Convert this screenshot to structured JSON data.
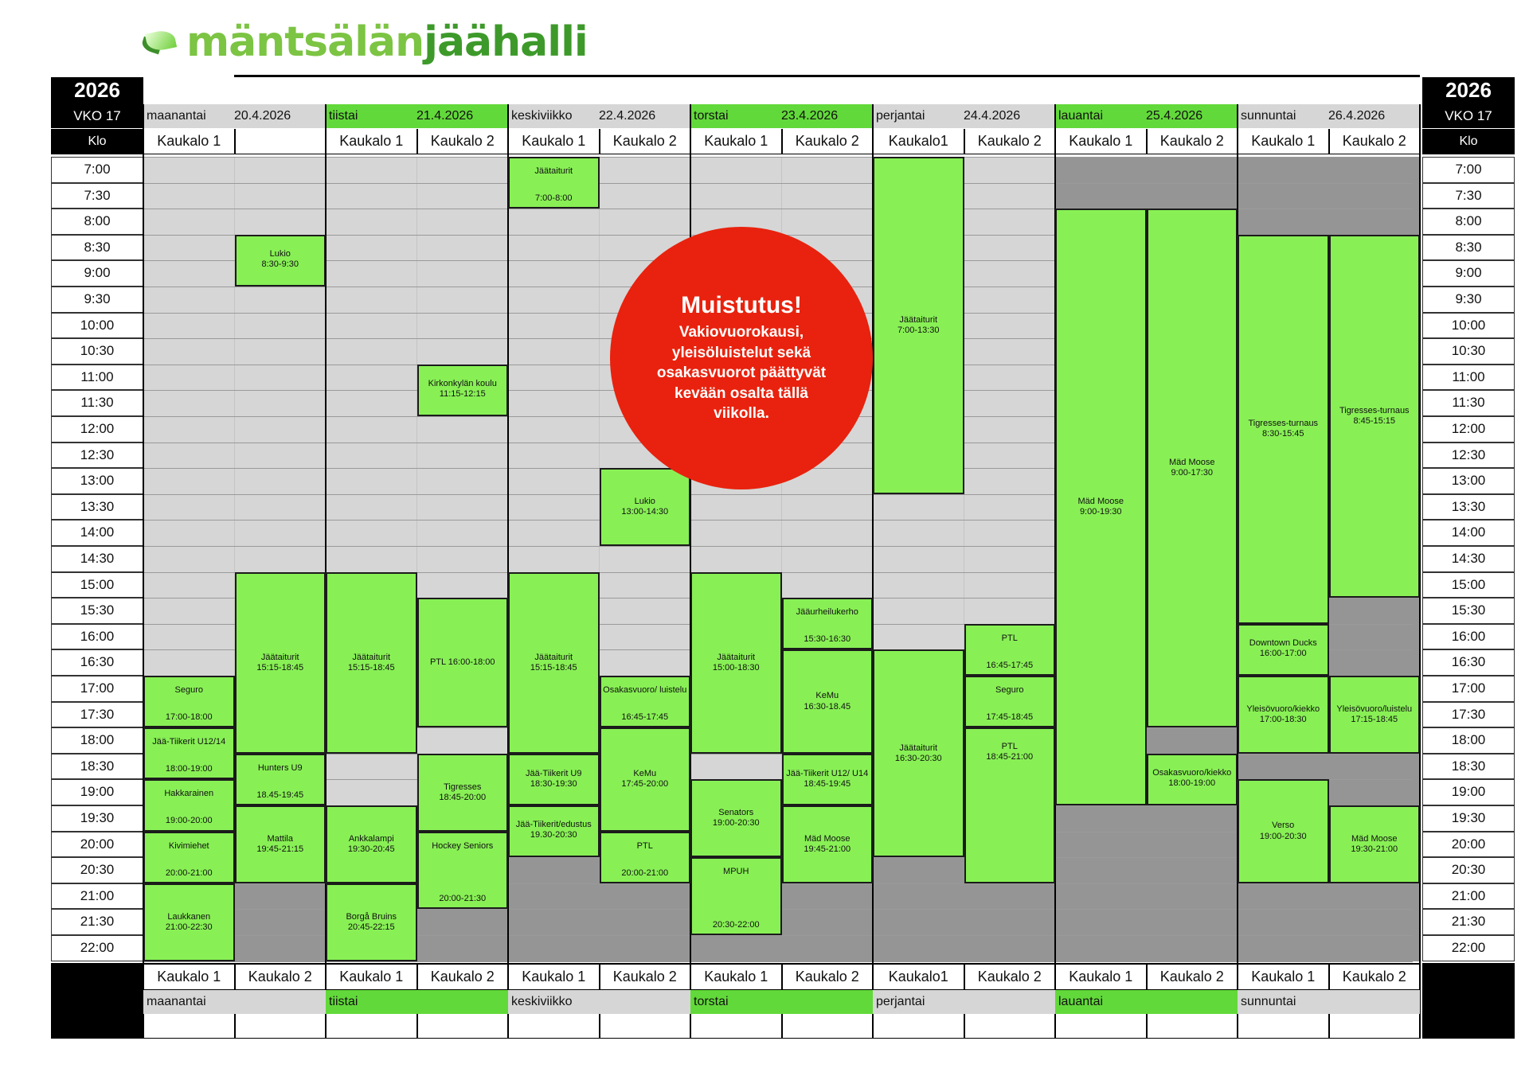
{
  "logo": {
    "part1": "mäntsälän",
    "part2": "jäähalli"
  },
  "header": {
    "year": "2026",
    "week": "VKO 17",
    "klo": "Klo"
  },
  "days": [
    {
      "name": "maanantai",
      "date": "20.4.2026",
      "shade": "light"
    },
    {
      "name": "tiistai",
      "date": "21.4.2026",
      "shade": "green"
    },
    {
      "name": "keskiviikko",
      "date": "22.4.2026",
      "shade": "light"
    },
    {
      "name": "torstai",
      "date": "23.4.2026",
      "shade": "green"
    },
    {
      "name": "perjantai",
      "date": "24.4.2026",
      "shade": "light"
    },
    {
      "name": "lauantai",
      "date": "25.4.2026",
      "shade": "green"
    },
    {
      "name": "sunnuntai",
      "date": "26.4.2026",
      "shade": "light"
    }
  ],
  "top_courts": [
    "Kaukalo 1",
    "",
    "Kaukalo 1",
    "Kaukalo 2",
    "Kaukalo 1",
    "Kaukalo 2",
    "Kaukalo 1",
    "Kaukalo 2",
    "Kaukalo1",
    "Kaukalo 2",
    "Kaukalo 1",
    "Kaukalo 2",
    "Kaukalo 1",
    "Kaukalo 2"
  ],
  "bottom_courts": [
    "Kaukalo 1",
    "Kaukalo 2",
    "Kaukalo 1",
    "Kaukalo 2",
    "Kaukalo 1",
    "Kaukalo 2",
    "Kaukalo 1",
    "Kaukalo 2",
    "Kaukalo1",
    "Kaukalo 2",
    "Kaukalo 1",
    "Kaukalo 2",
    "Kaukalo 1",
    "Kaukalo 2"
  ],
  "times": [
    "7:00",
    "7:30",
    "8:00",
    "8:30",
    "9:00",
    "9:30",
    "10:00",
    "10:30",
    "11:00",
    "11:30",
    "12:00",
    "12:30",
    "13:00",
    "13:30",
    "14:00",
    "14:30",
    "15:00",
    "15:30",
    "16:00",
    "16:30",
    "17:00",
    "17:30",
    "18:00",
    "18:30",
    "19:00",
    "19:30",
    "20:00",
    "20:30",
    "21:00",
    "21:30",
    "22:00"
  ],
  "dark_slots": [
    {
      "col": 10,
      "from": 0,
      "to": 2
    },
    {
      "col": 11,
      "from": 0,
      "to": 2
    },
    {
      "col": 12,
      "from": 0,
      "to": 3
    },
    {
      "col": 13,
      "from": 0,
      "to": 3
    },
    {
      "col": 1,
      "from": 28,
      "to": 31
    },
    {
      "col": 3,
      "from": 29,
      "to": 31
    },
    {
      "col": 4,
      "from": 27,
      "to": 31
    },
    {
      "col": 5,
      "from": 27,
      "to": 31
    },
    {
      "col": 6,
      "from": 30,
      "to": 31
    },
    {
      "col": 7,
      "from": 28,
      "to": 31
    },
    {
      "col": 8,
      "from": 27,
      "to": 31
    },
    {
      "col": 9,
      "from": 27,
      "to": 31
    },
    {
      "col": 10,
      "from": 25,
      "to": 31
    },
    {
      "col": 11,
      "from": 25,
      "to": 31
    },
    {
      "col": 11,
      "from": 22,
      "to": 23
    },
    {
      "col": 12,
      "from": 23,
      "to": 24
    },
    {
      "col": 12,
      "from": 28,
      "to": 31
    },
    {
      "col": 13,
      "from": 17,
      "to": 20
    },
    {
      "col": 13,
      "from": 23,
      "to": 25
    },
    {
      "col": 13,
      "from": 28,
      "to": 31
    }
  ],
  "events": [
    {
      "col": 1,
      "from": 3,
      "to": 5,
      "title": "Lukio",
      "time": "8:30-9:30",
      "layout": "top"
    },
    {
      "col": 0,
      "from": 20,
      "to": 22,
      "title": "Seguro",
      "time": "17:00-18:00",
      "layout": "split"
    },
    {
      "col": 0,
      "from": 22,
      "to": 24,
      "title": "Jää-Tiikerit U12/14",
      "time": "18:00-19:00",
      "layout": "split"
    },
    {
      "col": 0,
      "from": 24,
      "to": 26,
      "title": "Hakkarainen",
      "time": "19:00-20:00",
      "layout": "split"
    },
    {
      "col": 0,
      "from": 26,
      "to": 28,
      "title": "Kivimiehet",
      "time": "20:00-21:00",
      "layout": "split"
    },
    {
      "col": 0,
      "from": 28,
      "to": 31,
      "title": "Laukkanen",
      "time": "21:00-22:30",
      "layout": "center"
    },
    {
      "col": 1,
      "from": 16,
      "to": 23,
      "title": "Jäätaiturit",
      "time": "15:15-18:45",
      "layout": "center"
    },
    {
      "col": 1,
      "from": 23,
      "to": 25,
      "title": "Hunters U9",
      "time": "18.45-19:45",
      "layout": "split"
    },
    {
      "col": 1,
      "from": 25,
      "to": 28,
      "title": "Mattila",
      "time": "19:45-21:15",
      "layout": "center"
    },
    {
      "col": 2,
      "from": 16,
      "to": 23,
      "title": "Jäätaiturit",
      "time": "15:15-18:45",
      "layout": "center"
    },
    {
      "col": 2,
      "from": 25,
      "to": 28,
      "title": "Ankkalampi",
      "time": "19:30-20:45",
      "layout": "center"
    },
    {
      "col": 2,
      "from": 28,
      "to": 31,
      "title": "Borgå Bruins",
      "time": "20:45-22:15",
      "layout": "center"
    },
    {
      "col": 3,
      "from": 8,
      "to": 10,
      "title": "Kirkonkylän koulu",
      "time": "11:15-12:15",
      "layout": "top"
    },
    {
      "col": 3,
      "from": 17,
      "to": 22,
      "title": "PTL 16:00-18:00",
      "time": "",
      "layout": "center"
    },
    {
      "col": 3,
      "from": 23,
      "to": 26,
      "title": "Tigresses",
      "time": "18:45-20:00",
      "layout": "center"
    },
    {
      "col": 3,
      "from": 26,
      "to": 29,
      "title": "Hockey Seniors",
      "time": "20:00-21:30",
      "layout": "split"
    },
    {
      "col": 4,
      "from": 0,
      "to": 2,
      "title": "Jäätaiturit",
      "time": "7:00-8:00",
      "layout": "split"
    },
    {
      "col": 4,
      "from": 16,
      "to": 23,
      "title": "Jäätaiturit",
      "time": "15:15-18:45",
      "layout": "center"
    },
    {
      "col": 4,
      "from": 23,
      "to": 25,
      "title": "Jää-Tiikerit  U9",
      "time": "18:30-19:30",
      "layout": "center"
    },
    {
      "col": 4,
      "from": 25,
      "to": 27,
      "title": "Jää-Tiikerit/edustus",
      "time": "19.30-20:30",
      "layout": "top"
    },
    {
      "col": 5,
      "from": 12,
      "to": 15,
      "title": "Lukio",
      "time": "13:00-14:30",
      "layout": "center"
    },
    {
      "col": 5,
      "from": 20,
      "to": 22,
      "title": "Osakasvuoro/ luistelu",
      "time": "16:45-17:45",
      "layout": "split"
    },
    {
      "col": 5,
      "from": 22,
      "to": 26,
      "title": "KeMu",
      "time": "17:45-20:00",
      "layout": "center"
    },
    {
      "col": 5,
      "from": 26,
      "to": 28,
      "title": "PTL",
      "time": "20:00-21:00",
      "layout": "split"
    },
    {
      "col": 6,
      "from": 16,
      "to": 23,
      "title": "Jäätaiturit",
      "time": "15:00-18:30",
      "layout": "center"
    },
    {
      "col": 6,
      "from": 24,
      "to": 27,
      "title": "Senators",
      "time": "19:00-20:30",
      "layout": "center"
    },
    {
      "col": 6,
      "from": 27,
      "to": 30,
      "title": "MPUH",
      "time": "20:30-22:00",
      "layout": "split"
    },
    {
      "col": 7,
      "from": 17,
      "to": 19,
      "title": "Jääurheilukerho",
      "time": "15:30-16:30",
      "layout": "split"
    },
    {
      "col": 7,
      "from": 19,
      "to": 23,
      "title": "KeMu",
      "time": "16:30-18.45",
      "layout": "center"
    },
    {
      "col": 7,
      "from": 23,
      "to": 25,
      "title": "Jää-Tiikerit U12/ U14 18:45-19:45",
      "time": "",
      "layout": "center"
    },
    {
      "col": 7,
      "from": 25,
      "to": 28,
      "title": "Mäd Moose",
      "time": "19:45-21:00",
      "layout": "center"
    },
    {
      "col": 8,
      "from": 0,
      "to": 13,
      "title": "Jäätaiturit",
      "time": "7:00-13:30",
      "layout": "center"
    },
    {
      "col": 8,
      "from": 19,
      "to": 27,
      "title": "Jäätaiturit",
      "time": "16:30-20:30",
      "layout": "center"
    },
    {
      "col": 9,
      "from": 18,
      "to": 20,
      "title": "PTL",
      "time": "16:45-17:45",
      "layout": "split"
    },
    {
      "col": 9,
      "from": 20,
      "to": 22,
      "title": "Seguro",
      "time": "17:45-18:45",
      "layout": "split"
    },
    {
      "col": 9,
      "from": 22,
      "to": 28,
      "title": "PTL",
      "time": "18:45-21:00",
      "layout": "topgap2"
    },
    {
      "col": 10,
      "from": 2,
      "to": 25,
      "title": "Mäd Moose",
      "time": "9:00-19:30",
      "layout": "center"
    },
    {
      "col": 11,
      "from": 2,
      "to": 22,
      "title": "Mäd Moose",
      "time": "9:00-17:30",
      "layout": "center"
    },
    {
      "col": 11,
      "from": 23,
      "to": 25,
      "title": "Osakasvuoro/kiekko",
      "time": "18:00-19:00",
      "layout": "top"
    },
    {
      "col": 12,
      "from": 3,
      "to": 18,
      "title": "Tigresses-turnaus",
      "time": "8:30-15:45",
      "layout": "center"
    },
    {
      "col": 12,
      "from": 18,
      "to": 20,
      "title": "Downtown Ducks",
      "time": "16:00-17:00",
      "layout": "top"
    },
    {
      "col": 12,
      "from": 20,
      "to": 23,
      "title": "Yleisövuoro/kiekko",
      "time": "17:00-18:30",
      "layout": "center"
    },
    {
      "col": 12,
      "from": 24,
      "to": 28,
      "title": "Verso",
      "time": "19:00-20:30",
      "layout": "center"
    },
    {
      "col": 13,
      "from": 3,
      "to": 17,
      "title": "Tigresses-turnaus",
      "time": "8:45-15:15",
      "layout": "center"
    },
    {
      "col": 13,
      "from": 20,
      "to": 23,
      "title": "Yleisövuoro/luistelu",
      "time": "17:15-18:45",
      "layout": "center"
    },
    {
      "col": 13,
      "from": 25,
      "to": 28,
      "title": "Mäd Moose",
      "time": "19:30-21:00",
      "layout": "center"
    }
  ],
  "reminder": {
    "title": "Muistutus!",
    "text": "Vakiovuorokausi, yleisöluistelut sekä osakasvuorot päättyvät kevään osalta tällä viikolla."
  },
  "colors": {
    "event": "#88f055",
    "free": "#d6d6d6",
    "unavailable": "#959595",
    "green_header": "#62d93a",
    "reminder": "#e8220e"
  }
}
